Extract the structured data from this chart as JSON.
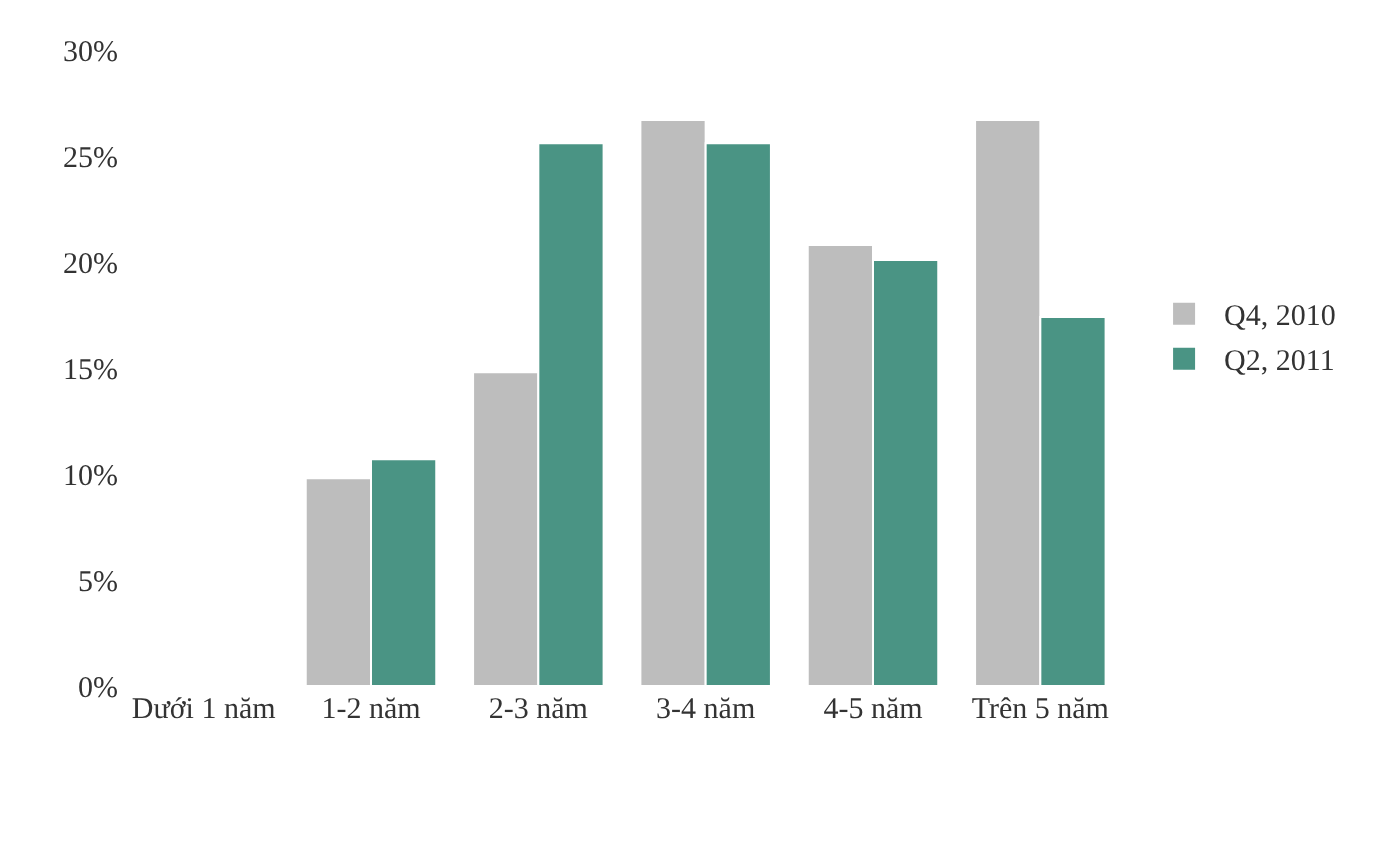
{
  "chart_data": {
    "type": "bar",
    "categories": [
      "Dưới 1 năm",
      "1-2 năm",
      "2-3 năm",
      "3-4 năm",
      "4-5 năm",
      "Trên 5 năm"
    ],
    "series": [
      {
        "name": "Q4, 2010",
        "color": "#bdbdbd",
        "values": [
          null,
          9.8,
          14.8,
          26.7,
          20.8,
          26.7
        ]
      },
      {
        "name": "Q2, 2011",
        "color": "#4a9484",
        "values": [
          null,
          10.7,
          25.6,
          25.6,
          20.1,
          17.4
        ]
      }
    ],
    "ylim": [
      0,
      30
    ],
    "yticks": [
      {
        "value": 0,
        "label": "0%"
      },
      {
        "value": 5,
        "label": "5%"
      },
      {
        "value": 10,
        "label": "10%"
      },
      {
        "value": 15,
        "label": "15%"
      },
      {
        "value": 20,
        "label": "20%"
      },
      {
        "value": 25,
        "label": "25%"
      },
      {
        "value": 30,
        "label": "30%"
      }
    ],
    "grid": false,
    "legend": "right"
  }
}
